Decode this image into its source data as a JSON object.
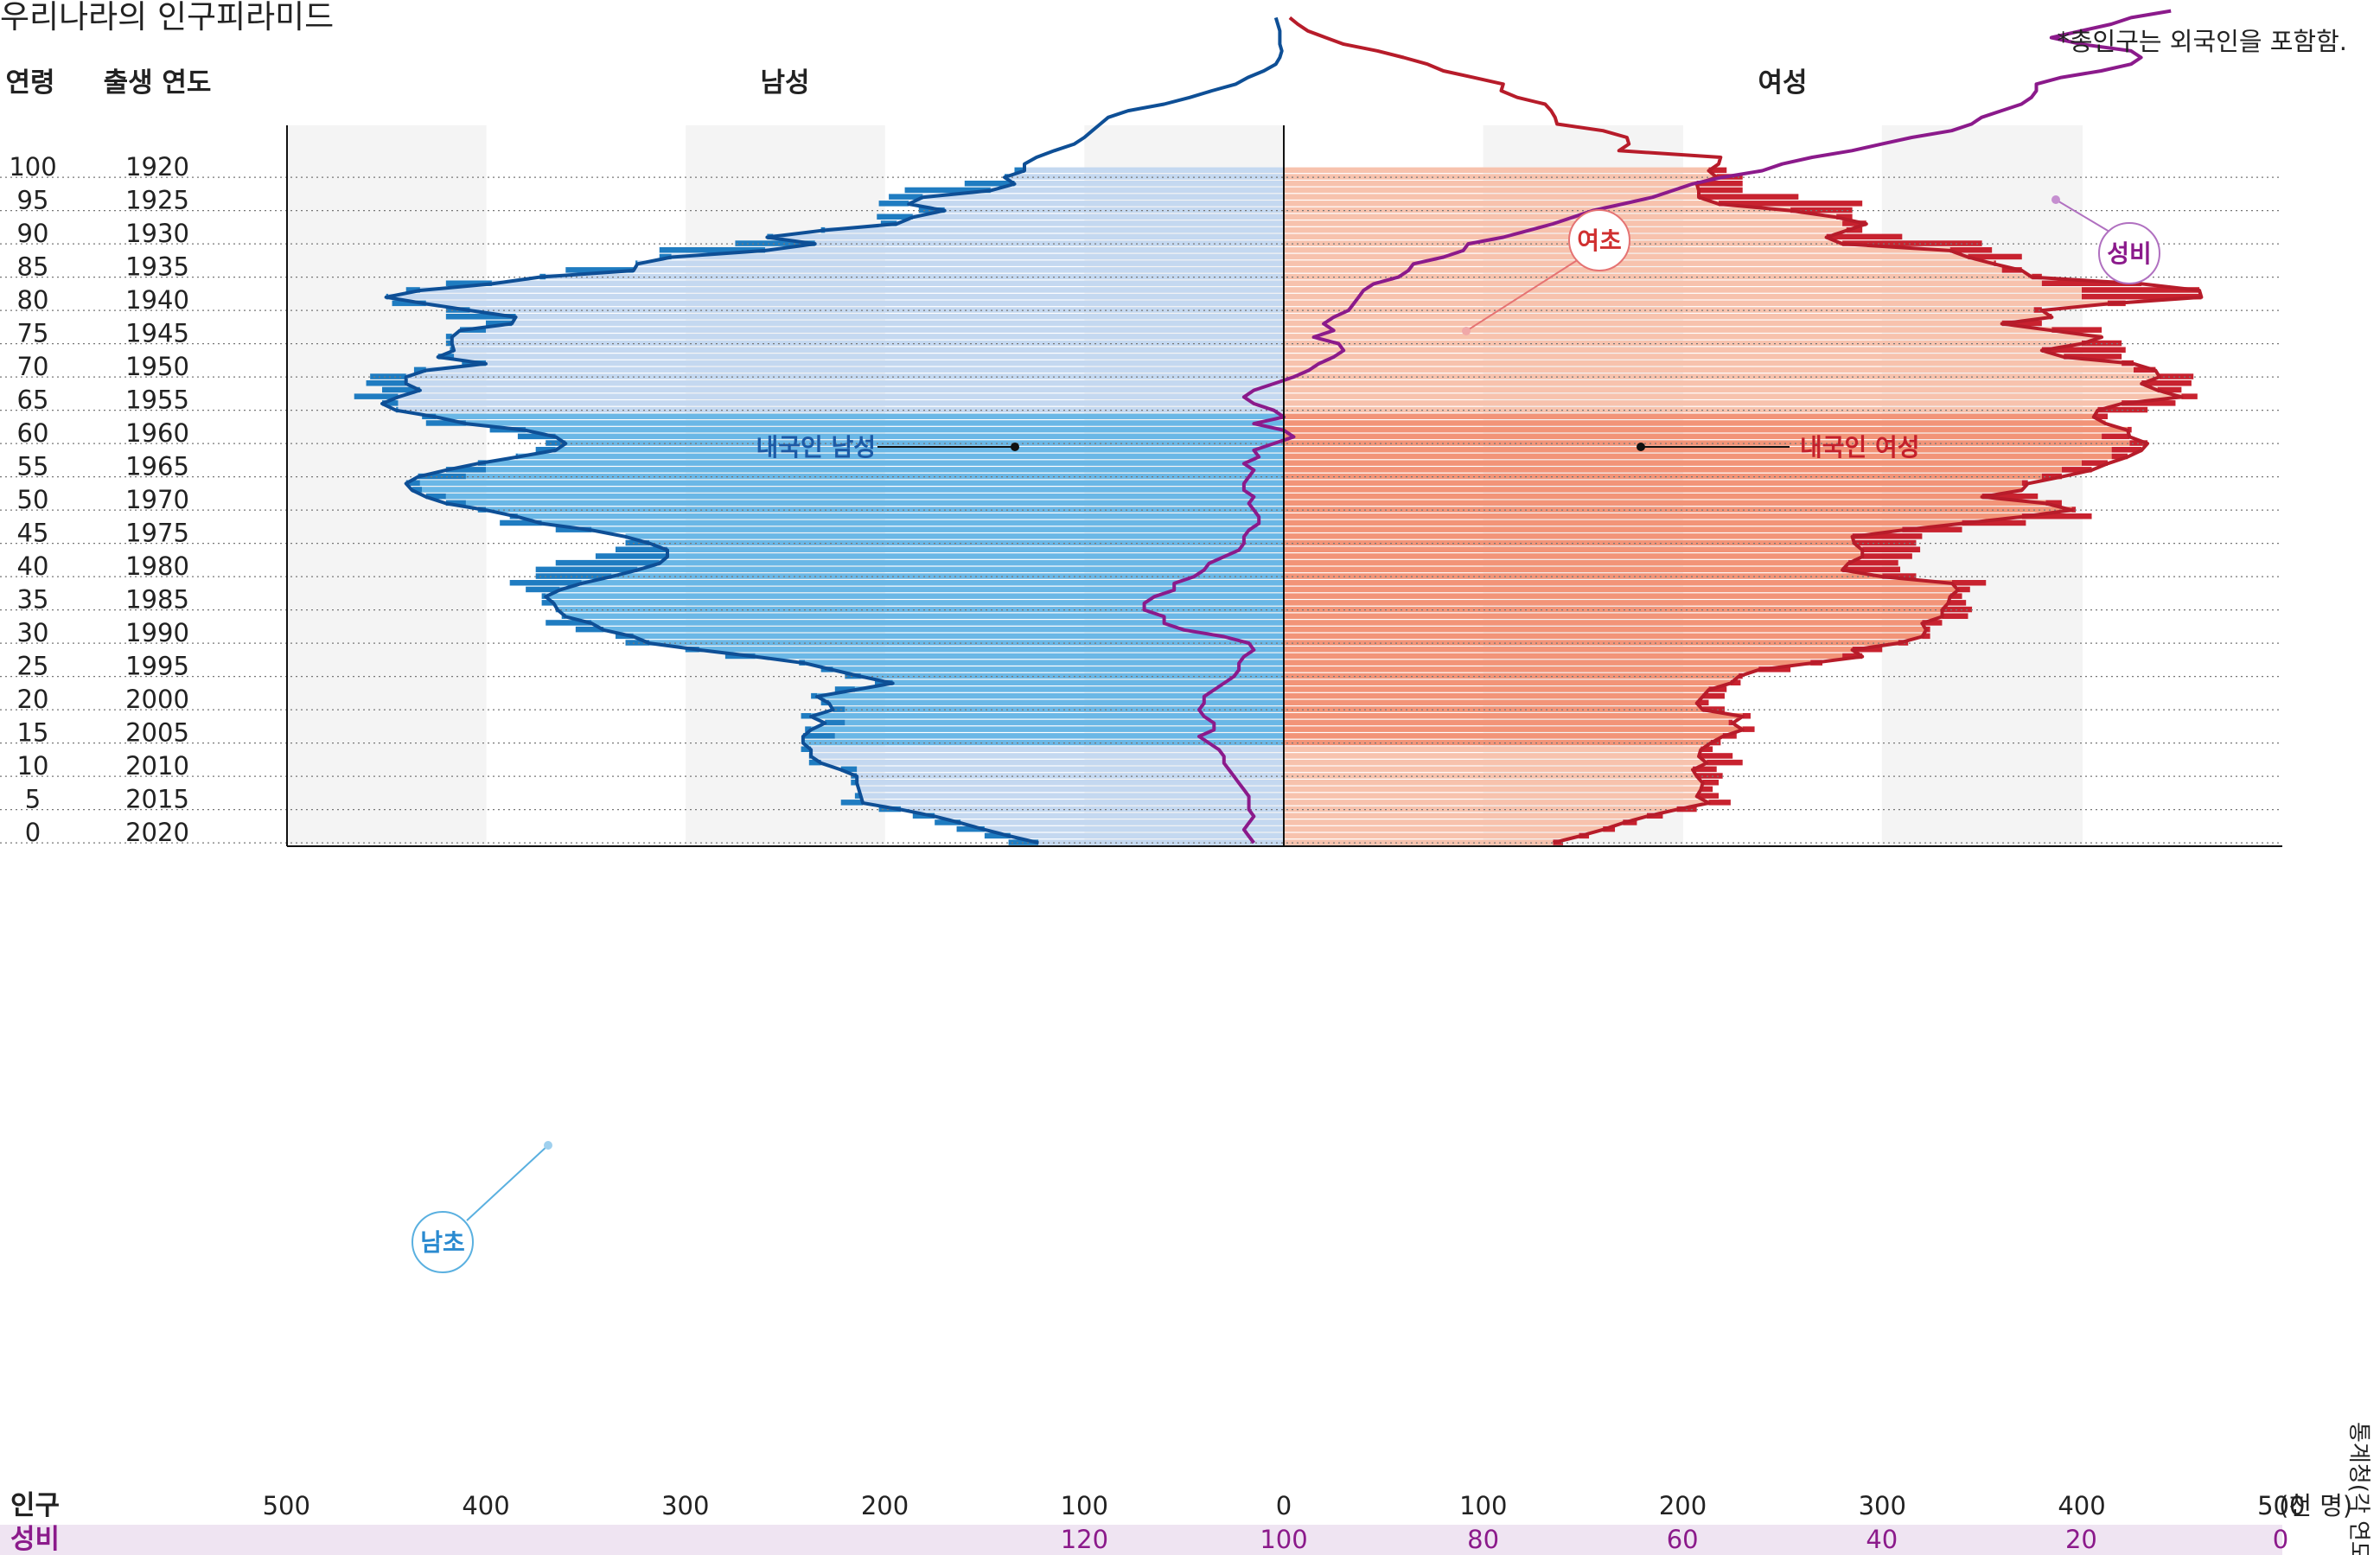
{
  "chart_data": {
    "type": "population-pyramid",
    "title": "우리나라의 인구피라미드",
    "note": "*총인구는 외국인을 포함함.",
    "source": "통계청(각 연도)",
    "header": {
      "age": "연령",
      "birth_year": "출생 연도",
      "male": "남성",
      "female": "여성"
    },
    "row_labels": {
      "ages": [
        100,
        95,
        90,
        85,
        80,
        75,
        70,
        65,
        60,
        55,
        50,
        45,
        40,
        35,
        30,
        25,
        20,
        15,
        10,
        5,
        0
      ],
      "birth_years": [
        1920,
        1925,
        1930,
        1935,
        1940,
        1945,
        1950,
        1955,
        1960,
        1965,
        1970,
        1975,
        1980,
        1985,
        1990,
        1995,
        2000,
        2005,
        2010,
        2015,
        2020
      ]
    },
    "population_axis": {
      "label": "인구",
      "unit": "(천 명)",
      "ticks_left": [
        "500",
        "400",
        "300",
        "200",
        "100",
        "0"
      ],
      "ticks_right": [
        "100",
        "200",
        "300",
        "400",
        "500"
      ],
      "range": [
        0,
        500
      ]
    },
    "sex_ratio_axis": {
      "label": "성비",
      "ticks": [
        "120",
        "100",
        "80",
        "60",
        "40",
        "20",
        "0"
      ],
      "values": [
        120,
        100,
        80,
        60,
        40,
        20,
        0
      ]
    },
    "annotations": {
      "male_native": "내국인 남성",
      "female_native": "내국인 여성",
      "male_exceed": "남초",
      "female_exceed": "여초",
      "sex_ratio": "성비"
    },
    "male_total": [
      138,
      150,
      164,
      175,
      186,
      203,
      222,
      215,
      213,
      217,
      217,
      214,
      238,
      238,
      242,
      241,
      225,
      240,
      220,
      242,
      220,
      232,
      237,
      225,
      205,
      220,
      232,
      243,
      280,
      300,
      330,
      335,
      355,
      370,
      362,
      365,
      372,
      372,
      380,
      388,
      375,
      375,
      365,
      345,
      335,
      330,
      330,
      365,
      393,
      388,
      404,
      410,
      420,
      432,
      433,
      410,
      400,
      400,
      385,
      375,
      370,
      384,
      398,
      430,
      432,
      444,
      444,
      466,
      452,
      460,
      458,
      436,
      412,
      416,
      418,
      420,
      420,
      400,
      400,
      420,
      420,
      447,
      449,
      440,
      420,
      370,
      360,
      325,
      313,
      313,
      275,
      256,
      230,
      202,
      204,
      183,
      203,
      198,
      190,
      160,
      138,
      135,
      135,
      128,
      140,
      130,
      135,
      105,
      100,
      92,
      78,
      58,
      52,
      41,
      32,
      28,
      22,
      15,
      9,
      6,
      4,
      3,
      2,
      1,
      1
    ],
    "male_native": [
      123,
      137,
      150,
      162,
      175,
      192,
      211,
      212,
      213,
      214,
      214,
      222,
      232,
      237,
      237,
      241,
      241,
      237,
      230,
      237,
      226,
      228,
      234,
      215,
      196,
      212,
      226,
      240,
      265,
      293,
      318,
      326,
      341,
      347,
      360,
      364,
      366,
      370,
      363,
      352,
      337,
      324,
      313,
      309,
      309,
      318,
      330,
      347,
      372,
      384,
      400,
      420,
      430,
      437,
      440,
      434,
      420,
      404,
      384,
      365,
      360,
      365,
      380,
      410,
      425,
      445,
      452,
      444,
      433,
      440,
      440,
      430,
      400,
      424,
      416,
      417,
      417,
      413,
      387,
      385,
      408,
      430,
      450,
      433,
      397,
      373,
      326,
      324,
      307,
      260,
      235,
      259,
      232,
      194,
      186,
      170,
      188,
      181,
      147,
      135,
      140,
      130,
      130,
      124,
      115,
      105,
      100,
      96,
      92,
      88,
      78,
      60,
      47,
      36,
      24,
      18,
      10,
      4,
      2,
      1,
      2,
      2,
      2,
      3,
      4
    ],
    "female_total": [
      140,
      153,
      166,
      177,
      190,
      207,
      224,
      218,
      215,
      218,
      220,
      217,
      230,
      225,
      215,
      219,
      227,
      236,
      223,
      234,
      221,
      213,
      221,
      222,
      229,
      230,
      254,
      270,
      280,
      300,
      313,
      324,
      324,
      330,
      343,
      345,
      342,
      340,
      344,
      352,
      317,
      309,
      308,
      315,
      319,
      317,
      320,
      340,
      372,
      405,
      397,
      390,
      378,
      370,
      370,
      380,
      390,
      400,
      415,
      415,
      424,
      410,
      425,
      412,
      413,
      433,
      447,
      458,
      450,
      455,
      456,
      426,
      420,
      420,
      422,
      420,
      410,
      410,
      380,
      384,
      376,
      422,
      400,
      400,
      380,
      380,
      360,
      357,
      370,
      355,
      350,
      310,
      290,
      280,
      285,
      285,
      290,
      258,
      230,
      230,
      230,
      222,
      230,
      225,
      200,
      200,
      190,
      169,
      157,
      157,
      153,
      145,
      137,
      125,
      110,
      95,
      80,
      72,
      60,
      48,
      32,
      23,
      13,
      8,
      5
    ],
    "female_native": [
      135,
      148,
      160,
      170,
      182,
      197,
      213,
      207,
      209,
      210,
      207,
      205,
      212,
      208,
      209,
      214,
      220,
      230,
      225,
      230,
      210,
      207,
      210,
      213,
      224,
      228,
      238,
      264,
      290,
      285,
      308,
      320,
      322,
      320,
      330,
      330,
      333,
      334,
      338,
      335,
      300,
      280,
      283,
      290,
      290,
      286,
      285,
      310,
      340,
      370,
      395,
      382,
      350,
      370,
      373,
      390,
      405,
      413,
      423,
      430,
      433,
      424,
      423,
      412,
      406,
      408,
      420,
      450,
      438,
      430,
      439,
      437,
      426,
      391,
      380,
      400,
      410,
      385,
      360,
      385,
      380,
      413,
      460,
      459,
      430,
      375,
      370,
      356,
      343,
      334,
      280,
      272,
      282,
      292,
      277,
      254,
      218,
      208,
      208,
      207,
      217,
      213,
      218,
      219,
      168,
      173,
      172,
      160,
      137,
      136,
      134,
      131,
      117,
      109,
      110,
      95,
      80,
      72,
      60,
      47,
      30,
      21,
      12,
      7,
      3
    ],
    "sex_ratio": [
      103,
      103.5,
      104,
      103.5,
      103,
      103.5,
      103.5,
      103.5,
      104,
      104.5,
      105,
      105.5,
      106,
      106,
      106.5,
      107.5,
      108.5,
      107,
      107,
      108,
      108.5,
      108,
      108,
      107,
      106,
      105,
      104.5,
      104.5,
      104,
      103,
      103.5,
      106,
      110,
      112,
      112,
      114,
      114,
      113,
      111,
      111,
      109,
      108,
      107.5,
      106,
      104.5,
      104,
      104,
      103.5,
      102.5,
      102.5,
      103,
      103.5,
      103,
      104,
      104,
      103.5,
      103,
      104,
      102.5,
      103,
      101,
      99,
      100,
      103,
      100,
      101,
      103,
      104,
      103,
      101,
      99,
      97.5,
      96.5,
      95,
      94,
      94.5,
      97,
      95,
      96,
      95,
      93.5,
      93,
      92.5,
      92,
      91,
      88.5,
      87.5,
      87,
      84,
      82,
      81.5,
      78,
      75.5,
      73,
      71,
      69,
      66,
      63,
      61,
      59,
      56,
      52,
      50,
      47,
      43,
      40,
      37,
      33,
      31,
      30,
      28,
      26,
      25,
      24.5,
      24.5,
      22,
      18,
      15,
      14,
      15,
      20,
      23,
      20,
      17,
      15,
      11
    ]
  }
}
